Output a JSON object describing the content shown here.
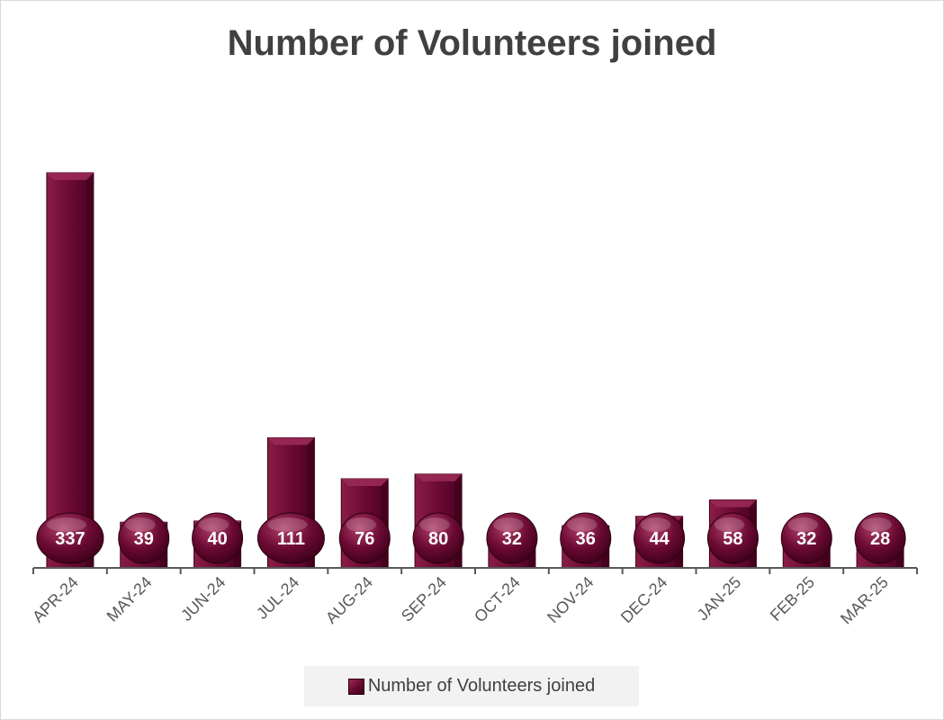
{
  "chart_data": {
    "type": "bar",
    "title": "Number of Volunteers joined",
    "categories": [
      "APR-24",
      "MAY-24",
      "JUN-24",
      "JUL-24",
      "AUG-24",
      "SEP-24",
      "OCT-24",
      "NOV-24",
      "DEC-24",
      "JAN-25",
      "FEB-25",
      "MAR-25"
    ],
    "series": [
      {
        "name": "Number of Volunteers joined",
        "values": [
          337,
          39,
          40,
          111,
          76,
          80,
          32,
          36,
          44,
          58,
          32,
          28
        ]
      }
    ],
    "xlabel": "",
    "ylabel": "",
    "ylim": [
      0,
      337
    ],
    "y_axis_visible": false,
    "grid": false,
    "data_labels": true,
    "legend": "bottom",
    "colors": {
      "bar": "#6b0a33",
      "bar_light": "#9a2a55",
      "bar_dark": "#3e0019",
      "axis": "#595959",
      "title": "#404040"
    }
  }
}
